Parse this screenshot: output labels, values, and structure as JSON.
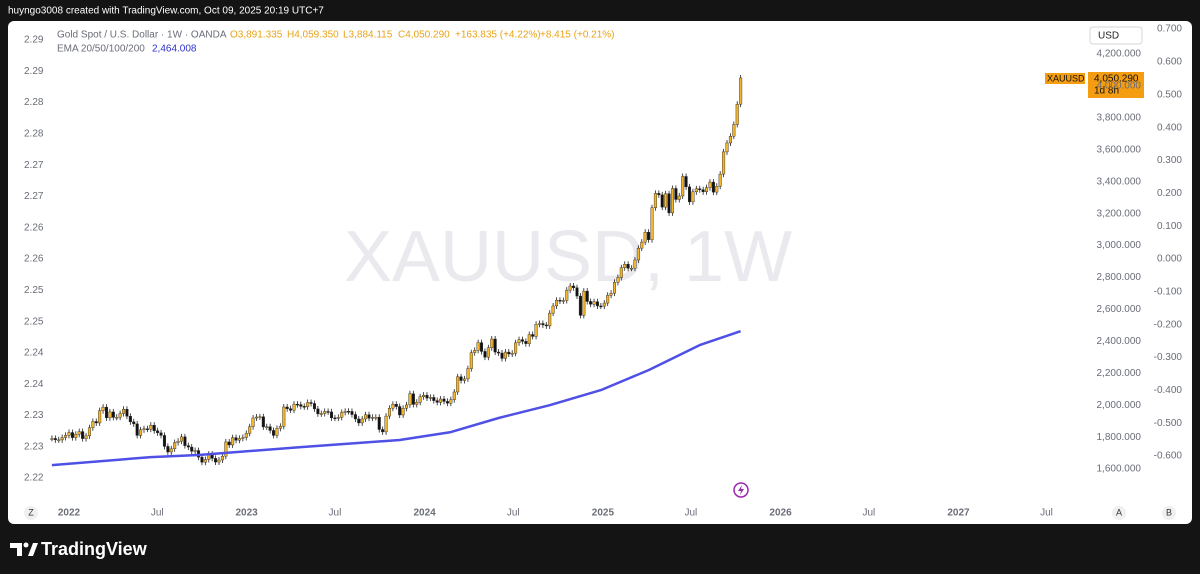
{
  "credit": "huyngo3008 created with TradingView.com, Oct 09, 2025 20:19 UTC+7",
  "brand": "TradingView",
  "buttons": {
    "zoom": "Z",
    "auto": "A",
    "log": "B"
  },
  "chart_data": {
    "type": "candlestick",
    "title": "Gold Spot / U.S. Dollar · 1W · OANDA",
    "ohlc": [
      "O3,891.335",
      "H4,059.350",
      "L3,884.115",
      "C4,050.290",
      "+163.835 (+4.22%)",
      "+8.415 (+0.21%)"
    ],
    "watermark": "XAUUSD, 1W",
    "currency": "USD",
    "price_tag": {
      "symbol": "XAUUSD",
      "price": "4,050.290",
      "countdown": "1d 8h"
    },
    "up_color": "#f5b52a",
    "down_color": "#131313",
    "grid": false,
    "xlim": [
      -17.3,
      298
    ],
    "xticks": [
      {
        "value": 0,
        "label": "2022"
      },
      {
        "value": 25.9,
        "label": "Jul"
      },
      {
        "value": 52.1,
        "label": "2023"
      },
      {
        "value": 78,
        "label": "Jul"
      },
      {
        "value": 104.3,
        "label": "2024"
      },
      {
        "value": 130.3,
        "label": "Jul"
      },
      {
        "value": 156.6,
        "label": "2025"
      },
      {
        "value": 182.4,
        "label": "Jul"
      },
      {
        "value": 208.7,
        "label": "2026"
      },
      {
        "value": 234.6,
        "label": "Jul"
      },
      {
        "value": 260.9,
        "label": "2027"
      },
      {
        "value": 286.7,
        "label": "Jul"
      }
    ],
    "ylim": [
      1375,
      4382
    ],
    "yticks": [
      {
        "value": 1600,
        "label": "1,600.000"
      },
      {
        "value": 1800,
        "label": "1,800.000"
      },
      {
        "value": 2000,
        "label": "2,000.000"
      },
      {
        "value": 2200,
        "label": "2,200.000"
      },
      {
        "value": 2400,
        "label": "2,400.000"
      },
      {
        "value": 2600,
        "label": "2,600.000"
      },
      {
        "value": 2800,
        "label": "2,800.000"
      },
      {
        "value": 3000,
        "label": "3,000.000"
      },
      {
        "value": 3200,
        "label": "3,200.000"
      },
      {
        "value": 3400,
        "label": "3,400.000"
      },
      {
        "value": 3600,
        "label": "3,600.000"
      },
      {
        "value": 3800,
        "label": "3,800.000"
      },
      {
        "value": 4000,
        "label": "4,000.000"
      },
      {
        "value": 4200,
        "label": "4,200.000"
      }
    ],
    "y2lim": [
      -0.749,
      0.7125
    ],
    "y2ticks": [
      {
        "value": 0.7,
        "label": "0.700"
      },
      {
        "value": 0.6,
        "label": "0.600"
      },
      {
        "value": 0.5,
        "label": "0.500"
      },
      {
        "value": 0.4,
        "label": "0.400"
      },
      {
        "value": 0.3,
        "label": "0.300"
      },
      {
        "value": 0.2,
        "label": "0.200"
      },
      {
        "value": 0.1,
        "label": "0.100"
      },
      {
        "value": 0,
        "label": "0.000"
      },
      {
        "value": -0.1,
        "label": "-0.100"
      },
      {
        "value": -0.2,
        "label": "-0.200"
      },
      {
        "value": -0.3,
        "label": "-0.300"
      },
      {
        "value": -0.4,
        "label": "-0.400"
      },
      {
        "value": -0.5,
        "label": "-0.500"
      },
      {
        "value": -0.6,
        "label": "-0.600"
      }
    ],
    "y3lim": [
      2.2157,
      2.2924
    ],
    "y3ticks": [
      {
        "value": 2.22,
        "label": "2.22"
      },
      {
        "value": 2.225,
        "label": "2.23"
      },
      {
        "value": 2.23,
        "label": "2.23"
      },
      {
        "value": 2.235,
        "label": "2.24"
      },
      {
        "value": 2.24,
        "label": "2.24"
      },
      {
        "value": 2.245,
        "label": "2.25"
      },
      {
        "value": 2.25,
        "label": "2.25"
      },
      {
        "value": 2.255,
        "label": "2.26"
      },
      {
        "value": 2.26,
        "label": "2.26"
      },
      {
        "value": 2.265,
        "label": "2.27"
      },
      {
        "value": 2.27,
        "label": "2.27"
      },
      {
        "value": 2.275,
        "label": "2.28"
      },
      {
        "value": 2.28,
        "label": "2.28"
      },
      {
        "value": 2.285,
        "label": "2.29"
      },
      {
        "value": 2.29,
        "label": "2.29"
      }
    ],
    "x": [
      -5,
      -4,
      -3,
      -2,
      -1,
      0,
      1,
      2,
      3,
      4,
      5,
      6,
      7,
      8,
      9,
      10,
      11,
      12,
      13,
      14,
      15,
      16,
      17,
      18,
      19,
      20,
      21,
      22,
      23,
      24,
      25,
      26,
      27,
      28,
      29,
      30,
      31,
      32,
      33,
      34,
      35,
      36,
      37,
      38,
      39,
      40,
      41,
      42,
      43,
      44,
      45,
      46,
      47,
      48,
      49,
      50,
      51,
      52,
      53,
      54,
      55,
      56,
      57,
      58,
      59,
      60,
      61,
      62,
      63,
      64,
      65,
      66,
      67,
      68,
      69,
      70,
      71,
      72,
      73,
      74,
      75,
      76,
      77,
      78,
      79,
      80,
      81,
      82,
      83,
      84,
      85,
      86,
      87,
      88,
      89,
      90,
      91,
      92,
      93,
      94,
      95,
      96,
      97,
      98,
      99,
      100,
      101,
      102,
      103,
      104,
      105,
      106,
      107,
      108,
      109,
      110,
      111,
      112,
      113,
      114,
      115,
      116,
      117,
      118,
      119,
      120,
      121,
      122,
      123,
      124,
      125,
      126,
      127,
      128,
      129,
      130,
      131,
      132,
      133,
      134,
      135,
      136,
      137,
      138,
      139,
      140,
      141,
      142,
      143,
      144,
      145,
      146,
      147,
      148,
      149,
      150,
      151,
      152,
      153,
      154,
      155,
      156,
      157,
      158,
      159,
      160,
      161,
      162,
      163,
      164,
      165,
      166,
      167,
      168,
      169,
      170,
      171,
      172,
      173,
      174,
      175,
      176,
      177,
      178,
      179,
      180,
      181,
      182,
      183,
      184,
      185,
      186,
      187,
      188,
      189,
      190,
      191,
      192,
      193,
      194,
      195,
      196,
      197
    ],
    "values": [
      1792,
      1783,
      1783,
      1798,
      1811,
      1829,
      1797,
      1818,
      1835,
      1791,
      1808,
      1859,
      1898,
      1889,
      1966,
      1988,
      1921,
      1958,
      1924,
      1925,
      1948,
      1975,
      1931,
      1896,
      1883,
      1811,
      1846,
      1853,
      1850,
      1875,
      1840,
      1827,
      1811,
      1742,
      1707,
      1727,
      1766,
      1775,
      1802,
      1747,
      1738,
      1712,
      1716,
      1675,
      1643,
      1660,
      1694,
      1667,
      1644,
      1657,
      1681,
      1770,
      1751,
      1797,
      1781,
      1792,
      1798,
      1824,
      1865,
      1920,
      1926,
      1928,
      1864,
      1865,
      1842,
      1811,
      1855,
      1868,
      1989,
      1978,
      1969,
      2007,
      2004,
      1993,
      1990,
      2017,
      2011,
      1977,
      1946,
      1948,
      1961,
      1958,
      1921,
      1919,
      1924,
      1955,
      1962,
      1961,
      1942,
      1914,
      1889,
      1914,
      1940,
      1919,
      1924,
      1925,
      1848,
      1833,
      1932,
      1981,
      2006,
      1992,
      1939,
      1981,
      2002,
      2072,
      2005,
      2019,
      2053,
      2063,
      2045,
      2049,
      2029,
      2018,
      2039,
      2024,
      2013,
      2035,
      2083,
      2178,
      2155,
      2165,
      2229,
      2329,
      2344,
      2392,
      2337,
      2301,
      2360,
      2415,
      2333,
      2327,
      2293,
      2333,
      2321,
      2326,
      2391,
      2411,
      2400,
      2386,
      2443,
      2431,
      2507,
      2512,
      2503,
      2497,
      2577,
      2622,
      2658,
      2653,
      2656,
      2721,
      2747,
      2736,
      2684,
      2563,
      2715,
      2650,
      2633,
      2648,
      2622,
      2621,
      2640,
      2689,
      2702,
      2770,
      2800,
      2861,
      2883,
      2858,
      2858,
      2910,
      2984,
      3022,
      3084,
      3037,
      3237,
      3327,
      3318,
      3241,
      3325,
      3205,
      3358,
      3289,
      3311,
      3433,
      3368,
      3274,
      3337,
      3356,
      3350,
      3337,
      3363,
      3398,
      3335,
      3372,
      3448,
      3587,
      3643,
      3685,
      3759,
      3886,
      4050.29
    ],
    "ema": {
      "name": "EMA 20/50/100/200",
      "value_label": "2,464.008",
      "color": "#4f50e6",
      "x": [
        -5,
        24,
        38,
        68,
        97,
        112,
        126,
        141,
        156,
        170,
        185,
        197
      ],
      "values": [
        1625,
        1675,
        1688,
        1738,
        1782,
        1832,
        1920,
        2000,
        2095,
        2220,
        2377,
        2464.008
      ]
    }
  }
}
